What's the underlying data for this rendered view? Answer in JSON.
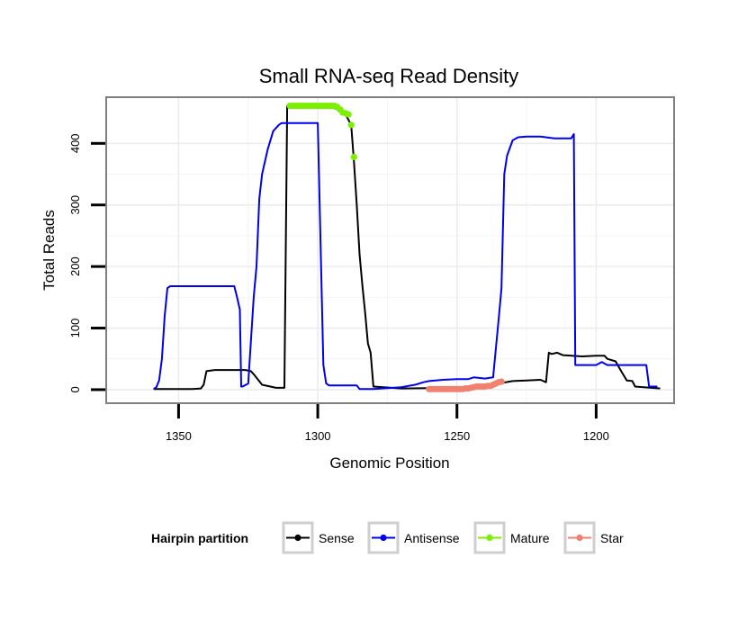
{
  "chart_data": {
    "type": "line",
    "title": "Small RNA-seq Read Density",
    "xlabel": "Genomic Position",
    "ylabel": "Total Reads",
    "xlim": [
      1376,
      1172
    ],
    "ylim": [
      -22,
      475
    ],
    "x_reversed": true,
    "grid": true,
    "x_ticks": [
      1350,
      1300,
      1250,
      1200
    ],
    "y_ticks": [
      0,
      100,
      200,
      300,
      400
    ],
    "legend": {
      "title": "Hairpin partition",
      "position": "bottom",
      "entries": [
        "Sense",
        "Antisense",
        "Mature",
        "Star"
      ]
    },
    "colors": {
      "Sense": "#000000",
      "Antisense": "#0000ee",
      "Mature": "#7cee00",
      "Star": "#f08070"
    },
    "series": [
      {
        "name": "Sense",
        "style": "line",
        "x": [
          1359,
          1345,
          1342,
          1341,
          1340,
          1337,
          1330,
          1326,
          1324,
          1323,
          1320,
          1315,
          1312,
          1311,
          1309.5,
          1306,
          1295,
          1293,
          1290,
          1288,
          1287,
          1286,
          1285,
          1284,
          1283,
          1282,
          1281,
          1280,
          1270,
          1250,
          1240,
          1235,
          1230,
          1225,
          1220,
          1218,
          1217,
          1216,
          1214,
          1212,
          1205,
          1200,
          1197,
          1196,
          1193,
          1191,
          1189,
          1187,
          1186,
          1183,
          1177
        ],
        "y": [
          1,
          1,
          2,
          8,
          30,
          32,
          32,
          32,
          30,
          25,
          8,
          3,
          3,
          461,
          461,
          461,
          459,
          455,
          447,
          430,
          370,
          300,
          220,
          170,
          125,
          75,
          60,
          5,
          2,
          3,
          5,
          10,
          14,
          15,
          16,
          12,
          60,
          58,
          60,
          56,
          54,
          55,
          55,
          50,
          46,
          30,
          15,
          14,
          5,
          4,
          2
        ]
      },
      {
        "name": "Antisense",
        "style": "line",
        "x": [
          1359,
          1358,
          1357,
          1356,
          1355,
          1354,
          1353,
          1350,
          1340,
          1330,
          1329,
          1328,
          1327.5,
          1327,
          1325,
          1323,
          1322,
          1321,
          1320,
          1318,
          1316,
          1314,
          1313,
          1311,
          1310,
          1300,
          1298,
          1297,
          1296,
          1295,
          1290,
          1286,
          1285,
          1280,
          1270,
          1265,
          1262,
          1260,
          1255,
          1250,
          1246,
          1244,
          1240,
          1237,
          1235,
          1234,
          1233,
          1232,
          1230,
          1228,
          1225,
          1220,
          1215,
          1209,
          1208,
          1207.5,
          1207,
          1205,
          1200,
          1198,
          1196,
          1194,
          1190,
          1185,
          1182,
          1181,
          1178
        ],
        "y": [
          1,
          4,
          15,
          50,
          120,
          165,
          168,
          168,
          168,
          168,
          150,
          130,
          5,
          5,
          10,
          150,
          200,
          310,
          350,
          390,
          420,
          430,
          433,
          433,
          433,
          433,
          40,
          10,
          7,
          7,
          7,
          7,
          1,
          1,
          4,
          8,
          12,
          14,
          16,
          17,
          17,
          20,
          18,
          20,
          115,
          165,
          350,
          380,
          405,
          410,
          411,
          411,
          408,
          408,
          415,
          40,
          40,
          40,
          40,
          45,
          40,
          40,
          40,
          40,
          40,
          5,
          5
        ]
      },
      {
        "name": "Mature",
        "style": "points",
        "x": [
          1310,
          1309,
          1308,
          1307,
          1306,
          1305,
          1304,
          1303,
          1302,
          1301,
          1300,
          1299,
          1298,
          1297,
          1296,
          1295,
          1294,
          1293,
          1292,
          1291,
          1290,
          1289,
          1288,
          1287
        ],
        "y": [
          461,
          461,
          461,
          461,
          461,
          461,
          461,
          461,
          461,
          461,
          461,
          461,
          461,
          461,
          461,
          461,
          461,
          459,
          455,
          450,
          449,
          447,
          430,
          378
        ]
      },
      {
        "name": "Star",
        "style": "points",
        "x": [
          1260,
          1259,
          1258,
          1257,
          1256,
          1255,
          1254,
          1253,
          1252,
          1251,
          1250,
          1249,
          1248,
          1247,
          1246,
          1245,
          1244,
          1243,
          1242,
          1241,
          1240,
          1239,
          1238,
          1237,
          1236,
          1235,
          1234
        ],
        "y": [
          1,
          1,
          1,
          1,
          1,
          1,
          1,
          1,
          1,
          1,
          1,
          1,
          1,
          2,
          2,
          3,
          4,
          5,
          5,
          5,
          5,
          6,
          6,
          8,
          10,
          12,
          13
        ]
      }
    ]
  }
}
